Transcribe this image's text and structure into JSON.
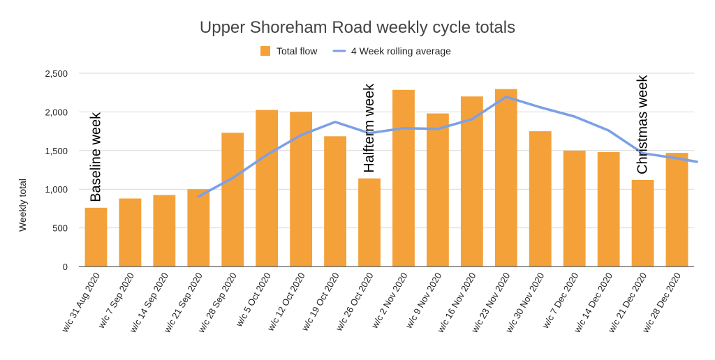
{
  "chart_data": {
    "type": "bar",
    "title": "Upper Shoreham Road weekly cycle totals",
    "xlabel": "",
    "ylabel": "Weekly total",
    "ylim": [
      0,
      2500
    ],
    "yticks": [
      0,
      500,
      1000,
      1500,
      2000,
      2500
    ],
    "ytick_labels": [
      "0",
      "500",
      "1,000",
      "1,500",
      "2,000",
      "2,500"
    ],
    "grid": true,
    "legend_position": "top-center",
    "categories": [
      "w/c 31 Aug 2020",
      "w/c 7 Sep 2020",
      "w/c 14 Sep 2020",
      "w/c 21 Sep 2020",
      "w/c 28 Sep 2020",
      "w/c 5 Oct 2020",
      "w/c 12 Oct 2020",
      "w/c 19 Oct 2020",
      "w/c 26 Oct 2020",
      "w/c 2 Nov 2020",
      "w/c 9 Nov 2020",
      "w/c 16 Nov 2020",
      "w/c 23 Nov 2020",
      "w/c 30 Nov 2020",
      "w/c 7 Dec 2020",
      "w/c 14 Dec 2020",
      "w/c 21 Dec 2020",
      "w/c 28 Dec 2020"
    ],
    "series": [
      {
        "name": "Total flow",
        "type": "bar",
        "color": "#f4a13a",
        "values": [
          760,
          880,
          925,
          1000,
          1730,
          2025,
          2000,
          1685,
          1140,
          2285,
          1980,
          2200,
          2295,
          1750,
          1500,
          1480,
          1120,
          1470
        ]
      },
      {
        "name": "4 Week rolling average",
        "type": "line",
        "color": "#7ba0e6",
        "values": [
          null,
          null,
          null,
          905,
          1145,
          1445,
          1700,
          1870,
          1725,
          1790,
          1780,
          1905,
          2195,
          2060,
          1940,
          1760,
          1465,
          1400
        ],
        "trailing_value": 1355
      }
    ],
    "annotations": [
      {
        "text": "Baseline week",
        "category_index": 0
      },
      {
        "text": "Halfterm week",
        "category_index": 8
      },
      {
        "text": "Christmas week",
        "category_index": 16
      }
    ]
  }
}
